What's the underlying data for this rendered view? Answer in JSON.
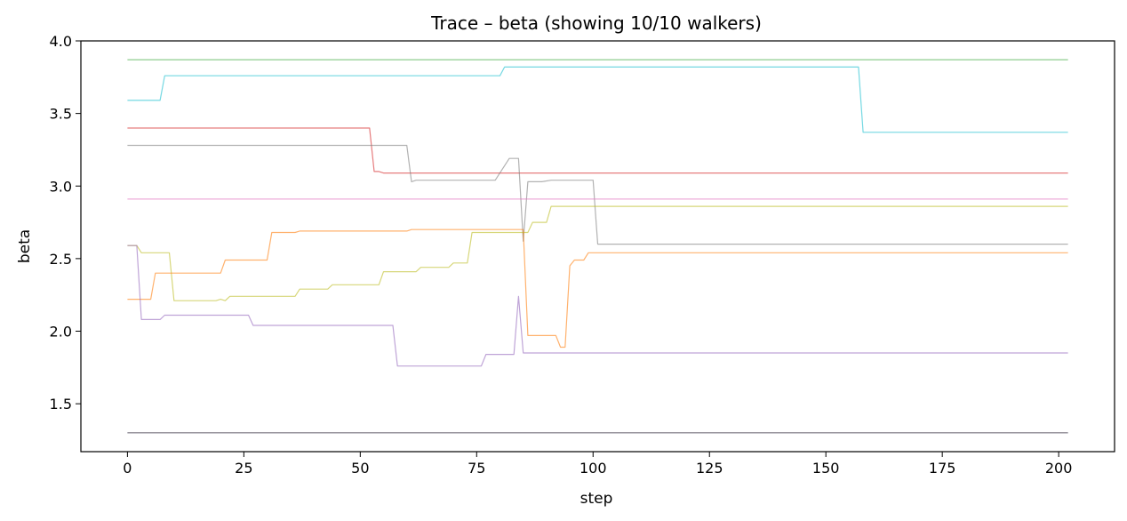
{
  "chart_data": {
    "type": "line",
    "title": "Trace – beta (showing 10/10 walkers)",
    "xlabel": "step",
    "ylabel": "beta",
    "xlim": [
      -10,
      212
    ],
    "ylim": [
      1.17,
      4.0
    ],
    "xticks": [
      0,
      25,
      50,
      75,
      100,
      125,
      150,
      175,
      200
    ],
    "yticks": [
      1.5,
      2.0,
      2.5,
      3.0,
      3.5,
      4.0
    ],
    "ytick_labels": [
      "1.5",
      "2.0",
      "2.5",
      "3.0",
      "3.5",
      "4.0"
    ],
    "grid": false,
    "legend": "none",
    "series": [
      {
        "color": "#2ca02c",
        "points": [
          [
            0,
            3.87
          ],
          [
            202,
            3.87
          ]
        ]
      },
      {
        "color": "#17becf",
        "points": [
          [
            0,
            3.59
          ],
          [
            7,
            3.59
          ],
          [
            8,
            3.76
          ],
          [
            80,
            3.76
          ],
          [
            81,
            3.82
          ],
          [
            157,
            3.82
          ],
          [
            158,
            3.37
          ],
          [
            202,
            3.37
          ]
        ]
      },
      {
        "color": "#d62728",
        "points": [
          [
            0,
            3.4
          ],
          [
            52,
            3.4
          ],
          [
            53,
            3.1
          ],
          [
            54,
            3.1
          ],
          [
            55,
            3.09
          ],
          [
            202,
            3.09
          ]
        ]
      },
      {
        "color": "#7f7f7f",
        "points": [
          [
            0,
            3.28
          ],
          [
            60,
            3.28
          ],
          [
            61,
            3.03
          ],
          [
            62,
            3.04
          ],
          [
            79,
            3.04
          ],
          [
            82,
            3.19
          ],
          [
            84,
            3.19
          ],
          [
            85,
            2.62
          ],
          [
            86,
            3.03
          ],
          [
            89,
            3.03
          ],
          [
            91,
            3.04
          ],
          [
            100,
            3.04
          ],
          [
            101,
            2.6
          ],
          [
            202,
            2.6
          ]
        ]
      },
      {
        "color": "#e377c2",
        "points": [
          [
            0,
            2.91
          ],
          [
            202,
            2.91
          ]
        ]
      },
      {
        "color": "#bcbd22",
        "points": [
          [
            0,
            2.59
          ],
          [
            2,
            2.59
          ],
          [
            3,
            2.54
          ],
          [
            9,
            2.54
          ],
          [
            10,
            2.21
          ],
          [
            19,
            2.21
          ],
          [
            20,
            2.22
          ],
          [
            21,
            2.21
          ],
          [
            22,
            2.24
          ],
          [
            36,
            2.24
          ],
          [
            37,
            2.29
          ],
          [
            43,
            2.29
          ],
          [
            44,
            2.32
          ],
          [
            54,
            2.32
          ],
          [
            55,
            2.41
          ],
          [
            62,
            2.41
          ],
          [
            63,
            2.44
          ],
          [
            69,
            2.44
          ],
          [
            70,
            2.47
          ],
          [
            73,
            2.47
          ],
          [
            74,
            2.68
          ],
          [
            86,
            2.68
          ],
          [
            87,
            2.75
          ],
          [
            90,
            2.75
          ],
          [
            91,
            2.86
          ],
          [
            202,
            2.86
          ]
        ]
      },
      {
        "color": "#ff7f0e",
        "points": [
          [
            0,
            2.22
          ],
          [
            5,
            2.22
          ],
          [
            6,
            2.4
          ],
          [
            20,
            2.4
          ],
          [
            21,
            2.49
          ],
          [
            30,
            2.49
          ],
          [
            31,
            2.68
          ],
          [
            36,
            2.68
          ],
          [
            37,
            2.69
          ],
          [
            60,
            2.69
          ],
          [
            61,
            2.7
          ],
          [
            85,
            2.7
          ],
          [
            86,
            1.97
          ],
          [
            92,
            1.97
          ],
          [
            93,
            1.89
          ],
          [
            94,
            1.89
          ],
          [
            95,
            2.45
          ],
          [
            96,
            2.49
          ],
          [
            98,
            2.49
          ],
          [
            99,
            2.54
          ],
          [
            202,
            2.54
          ]
        ]
      },
      {
        "color": "#9467bd",
        "points": [
          [
            0,
            2.59
          ],
          [
            1,
            2.59
          ],
          [
            2,
            2.59
          ],
          [
            3,
            2.08
          ],
          [
            7,
            2.08
          ],
          [
            8,
            2.11
          ],
          [
            26,
            2.11
          ],
          [
            27,
            2.04
          ],
          [
            57,
            2.04
          ],
          [
            58,
            1.76
          ],
          [
            76,
            1.76
          ],
          [
            77,
            1.84
          ],
          [
            83,
            1.84
          ],
          [
            84,
            2.24
          ],
          [
            85,
            1.85
          ],
          [
            202,
            1.85
          ]
        ]
      },
      {
        "color": "#1f77b4",
        "points": [
          [
            0,
            1.3
          ],
          [
            202,
            1.3
          ]
        ]
      },
      {
        "color": "#8c564b",
        "points": [
          [
            0,
            1.3
          ],
          [
            202,
            1.3
          ]
        ]
      }
    ]
  }
}
